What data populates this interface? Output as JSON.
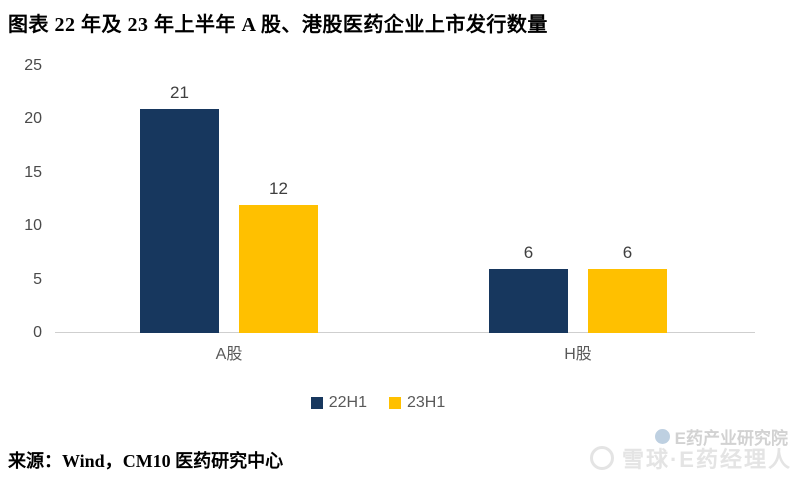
{
  "page": {
    "title": "图表  22 年及 23 年上半年 A 股、港股医药企业上市发行数量",
    "source": "来源：Wind，CM10 医药研究中心",
    "watermarks": {
      "institute": "E药产业研究院",
      "xueqiu": "雪球·E药经理人"
    }
  },
  "chart_data": {
    "type": "bar",
    "title": "22 年及 23 年上半年 A 股、港股医药企业上市发行数量",
    "categories": [
      "A股",
      "H股"
    ],
    "series": [
      {
        "name": "22H1",
        "color": "#17375E",
        "values": [
          21,
          6
        ]
      },
      {
        "name": "23H1",
        "color": "#FFC000",
        "values": [
          12,
          6
        ]
      }
    ],
    "ylim": [
      0,
      25
    ],
    "yticks": [
      0,
      5,
      10,
      15,
      20,
      25
    ],
    "grid": false,
    "legend_position": "bottom",
    "value_labels": true,
    "axis_color": "#cfcfcf"
  }
}
